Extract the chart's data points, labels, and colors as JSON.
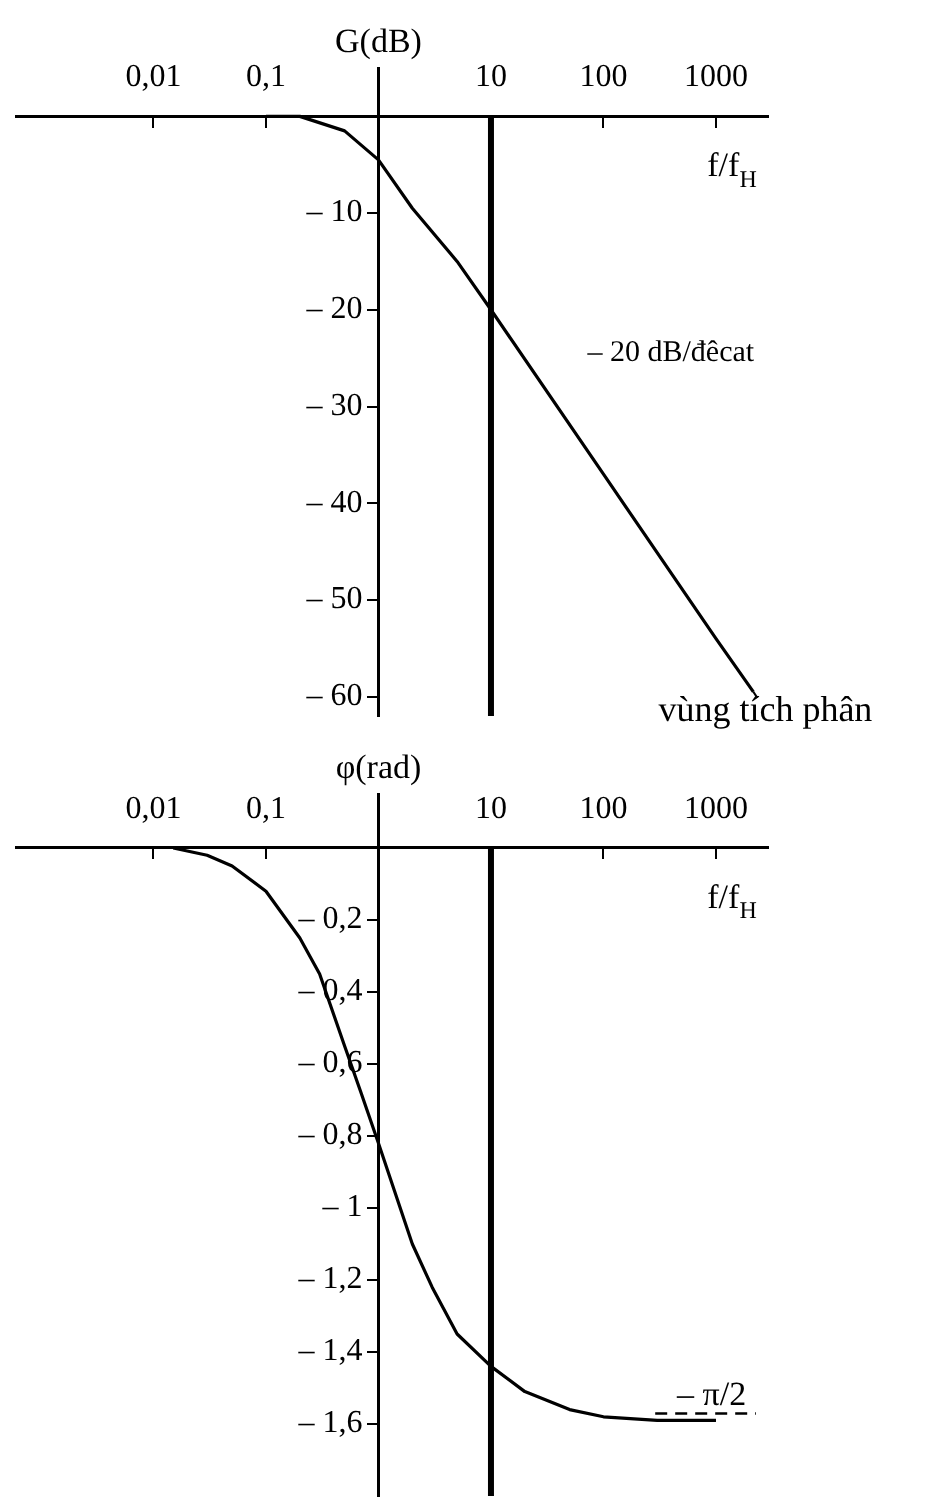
{
  "chart_data": [
    {
      "type": "line",
      "xlabel": "f/f$_{H}$",
      "ylabel": "G(dB)",
      "log": "x",
      "xlim": [
        0.0006,
        2900
      ],
      "ylim": [
        -62,
        5
      ],
      "xticks": [
        {
          "value": 0.01,
          "label": "0,01"
        },
        {
          "value": 0.1,
          "label": "0,1"
        },
        {
          "value": 1,
          "label": null
        },
        {
          "value": 10,
          "label": "10"
        },
        {
          "value": 100,
          "label": "100"
        },
        {
          "value": 1000,
          "label": "1000"
        }
      ],
      "yticks": [
        {
          "value": -10,
          "label": "– 10"
        },
        {
          "value": -20,
          "label": "– 20"
        },
        {
          "value": -30,
          "label": "– 30"
        },
        {
          "value": -40,
          "label": "– 40"
        },
        {
          "value": -50,
          "label": "– 50"
        },
        {
          "value": -60,
          "label": "– 60"
        }
      ],
      "series": [
        {
          "color": "#000000",
          "x": [
            0.1,
            0.2,
            0.5,
            1,
            2,
            5,
            10,
            100,
            1000,
            2150
          ],
          "values": [
            0,
            0,
            -1.5,
            -4.5,
            -9.5,
            -15,
            -20,
            -37,
            -54,
            -59.5
          ]
        }
      ],
      "ref_lines": [
        {
          "axis": "x",
          "value": 10
        }
      ],
      "annotations": [
        "– 20 dB/đêcat",
        {
          "text": "vùng tích phân",
          "x": 2150,
          "y": -59.5
        }
      ],
      "grid": false,
      "legend": false,
      "marker": "none"
    },
    {
      "type": "line",
      "xlabel": "f/f$_{H}$",
      "ylabel": "φ(rad)",
      "log": "x",
      "xlim": [
        0.0006,
        2900
      ],
      "ylim": [
        -1.8,
        0.15
      ],
      "xticks": [
        {
          "value": 0.01,
          "label": "0,01"
        },
        {
          "value": 0.1,
          "label": "0,1"
        },
        {
          "value": 1,
          "label": null
        },
        {
          "value": 10,
          "label": "10"
        },
        {
          "value": 100,
          "label": "100"
        },
        {
          "value": 1000,
          "label": "1000"
        }
      ],
      "yticks": [
        {
          "value": -0.2,
          "label": "– 0,2"
        },
        {
          "value": -0.4,
          "label": "– 0,4"
        },
        {
          "value": -0.6,
          "label": "– 0,6"
        },
        {
          "value": -0.8,
          "label": "– 0,8"
        },
        {
          "value": -1,
          "label": "– 1"
        },
        {
          "value": -1.2,
          "label": "– 1,2"
        },
        {
          "value": -1.4,
          "label": "– 1,4"
        },
        {
          "value": -1.6,
          "label": "– 1,6"
        }
      ],
      "series": [
        {
          "color": "#000000",
          "x": [
            0.015,
            0.03,
            0.05,
            0.1,
            0.2,
            0.3,
            0.5,
            0.7,
            1,
            2,
            3,
            5,
            10,
            20,
            50,
            100,
            300,
            1000
          ],
          "values": [
            0,
            -0.02,
            -0.05,
            -0.12,
            -0.25,
            -0.35,
            -0.55,
            -0.68,
            -0.82,
            -1.1,
            -1.22,
            -1.35,
            -1.44,
            -1.51,
            -1.56,
            -1.58,
            -1.59,
            -1.59
          ]
        }
      ],
      "ref_lines": [
        {
          "axis": "x",
          "value": 10
        },
        {
          "axis": "y",
          "value": -1.5708,
          "label": "– π/2",
          "line_style": "dashed"
        }
      ],
      "grid": false,
      "legend": false,
      "marker": "none"
    }
  ]
}
